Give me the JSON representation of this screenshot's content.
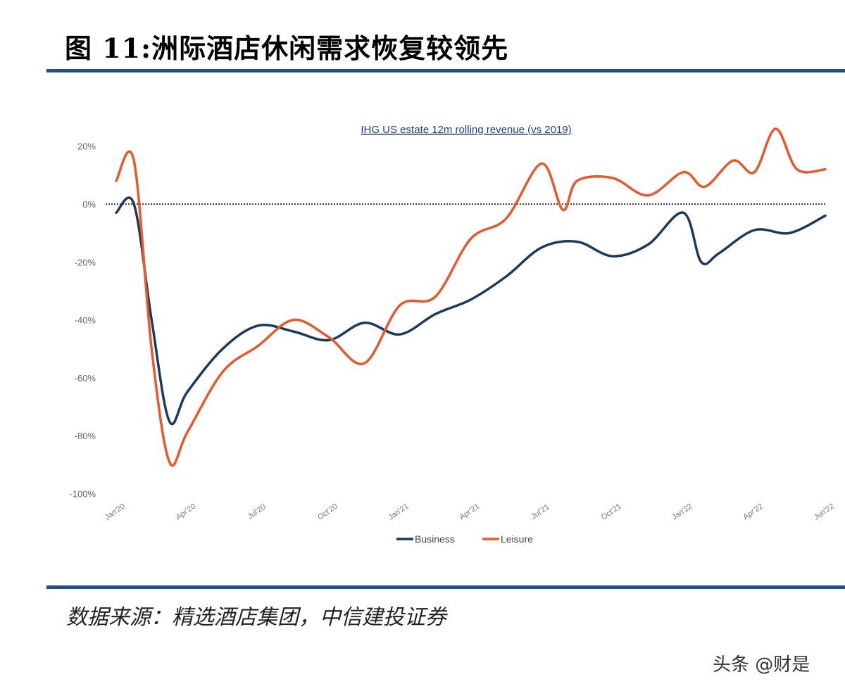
{
  "figure": {
    "title": "图 11:洲际酒店休闲需求恢复较领先",
    "source": "数据来源：精选酒店集团，中信建投证券",
    "watermark": "头条 @财是",
    "rule_color": "#1f4e8c"
  },
  "chart_data": {
    "type": "line",
    "title": "IHG US estate 12m rolling revenue (vs 2019)",
    "xlabel": "",
    "ylabel": "",
    "x_ticks": [
      "Jan'20",
      "Apr'20",
      "Jul'20",
      "Oct'20",
      "Jan'21",
      "Apr'21",
      "Jul'21",
      "Oct'21",
      "Jan'22",
      "Apr'22",
      "Jun'22"
    ],
    "y_ticks": [
      "20%",
      "0%",
      "-20%",
      "-40%",
      "-60%",
      "-80%",
      "-100%"
    ],
    "ylim": [
      -100,
      25
    ],
    "reference_line": 0,
    "legend": [
      "Business",
      "Leisure"
    ],
    "legend_position": "bottom-center",
    "series": [
      {
        "name": "Business",
        "color": "#1b3a5c",
        "x": [
          0,
          0.25,
          0.5,
          0.75,
          1,
          1.5,
          2,
          2.5,
          3,
          3.5,
          4,
          4.5,
          5,
          5.5,
          6,
          6.5,
          7,
          7.5,
          8,
          8.25,
          8.5,
          9,
          9.5,
          10
        ],
        "values": [
          -3,
          0,
          -40,
          -75,
          -65,
          -50,
          -42,
          -44,
          -47,
          -41,
          -45,
          -38,
          -33,
          -25,
          -15,
          -13,
          -18,
          -14,
          -3,
          -20,
          -17,
          -9,
          -10,
          -4
        ]
      },
      {
        "name": "Leisure",
        "color": "#e8582a",
        "x": [
          0,
          0.25,
          0.5,
          0.75,
          1,
          1.5,
          2,
          2.5,
          3,
          3.5,
          4,
          4.5,
          5,
          5.5,
          6,
          6.3,
          6.5,
          7,
          7.5,
          8,
          8.3,
          8.7,
          9,
          9.3,
          9.6,
          10
        ],
        "values": [
          8,
          15,
          -50,
          -89,
          -79,
          -58,
          -49,
          -40,
          -46,
          -55,
          -35,
          -32,
          -12,
          -5,
          14,
          -2,
          8,
          9,
          3,
          11,
          6,
          15,
          11,
          26,
          12,
          12
        ]
      }
    ]
  }
}
